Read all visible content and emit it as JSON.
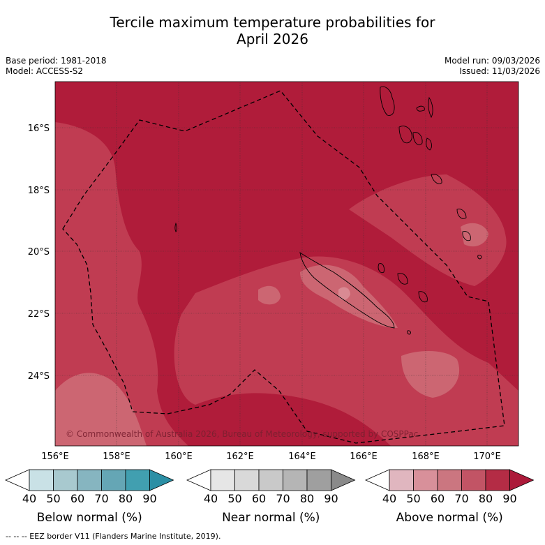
{
  "title_line1": "Tercile maximum temperature probabilities for",
  "title_line2": "April 2026",
  "base_period": "Base period: 1981-2018",
  "model": "Model: ACCESS-S2",
  "model_run": "Model run: 09/03/2026",
  "issued": "Issued: 11/03/2026",
  "copyright": "© Commonwealth of Australia 2026, Bureau of Meteorology, supported by COSPPac",
  "lat_labels": [
    "16°S",
    "18°S",
    "20°S",
    "22°S",
    "24°S"
  ],
  "lon_labels": [
    "156°E",
    "158°E",
    "160°E",
    "162°E",
    "164°E",
    "166°E",
    "168°E",
    "170°E"
  ],
  "colorbars": [
    {
      "label": "Below normal (%)",
      "ticks": [
        "40",
        "50",
        "60",
        "70",
        "80",
        "90"
      ],
      "colors": [
        "#ffffff",
        "#c9e1e6",
        "#a8c9cf",
        "#86b5c0",
        "#65a6b5",
        "#419fb0",
        "#2b8fa5"
      ]
    },
    {
      "label": "Near normal (%)",
      "ticks": [
        "40",
        "50",
        "60",
        "70",
        "80",
        "90"
      ],
      "colors": [
        "#ffffff",
        "#e6e6e6",
        "#d9d9d9",
        "#c9c9c9",
        "#b5b5b5",
        "#9f9f9f",
        "#8a8a8a"
      ]
    },
    {
      "label": "Above normal (%)",
      "ticks": [
        "40",
        "50",
        "60",
        "70",
        "80",
        "90"
      ],
      "colors": [
        "#ffffff",
        "#e0b6bf",
        "#d8909a",
        "#cb7680",
        "#c25465",
        "#b42c45",
        "#ac1a3a"
      ]
    }
  ],
  "eez_note": "--  --  -- EEZ border V11 (Flanders Marine Institute, 2019).",
  "colors": {
    "deep": "#b01c3a",
    "mid": "#c03c52",
    "light": "#cc6672",
    "lighter": "#d98a93"
  }
}
